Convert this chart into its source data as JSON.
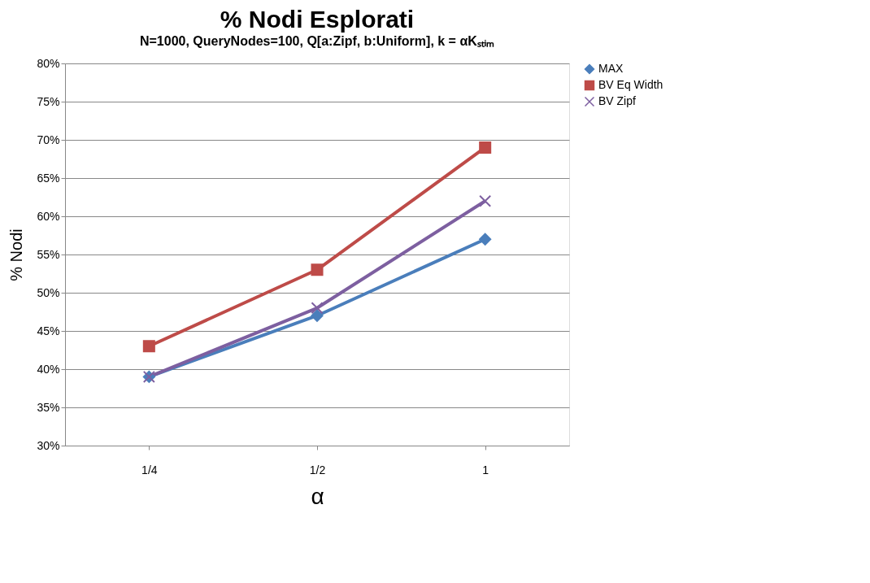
{
  "chart_data": {
    "type": "line",
    "title": "% Nodi Esplorati",
    "subtitle": "N=1000, QueryNodes=100, Q[a:Zipf, b:Uniform], k = αKₛₜᵢₘ",
    "xlabel": "α",
    "ylabel": "% Nodi",
    "categories": [
      "1/4",
      "1/2",
      "1"
    ],
    "series": [
      {
        "name": "MAX",
        "color": "#4a7ebb",
        "marker": "diamond",
        "values": [
          39,
          47,
          57
        ]
      },
      {
        "name": "BV Eq Width",
        "color": "#be4b48",
        "marker": "square",
        "values": [
          43,
          53,
          69
        ]
      },
      {
        "name": "BV Zipf",
        "color": "#7d5fa0",
        "marker": "cross",
        "values": [
          39,
          48,
          62
        ]
      }
    ],
    "ylim": [
      30,
      80
    ],
    "yticks": [
      {
        "value": 30,
        "label": "30%"
      },
      {
        "value": 35,
        "label": "35%"
      },
      {
        "value": 40,
        "label": "40%"
      },
      {
        "value": 45,
        "label": "45%"
      },
      {
        "value": 50,
        "label": "50%"
      },
      {
        "value": 55,
        "label": "55%"
      },
      {
        "value": 60,
        "label": "60%"
      },
      {
        "value": 65,
        "label": "65%"
      },
      {
        "value": 70,
        "label": "70%"
      },
      {
        "value": 75,
        "label": "75%"
      },
      {
        "value": 80,
        "label": "80%"
      }
    ],
    "grid": "y",
    "legend": "right",
    "line_style": "solid"
  }
}
